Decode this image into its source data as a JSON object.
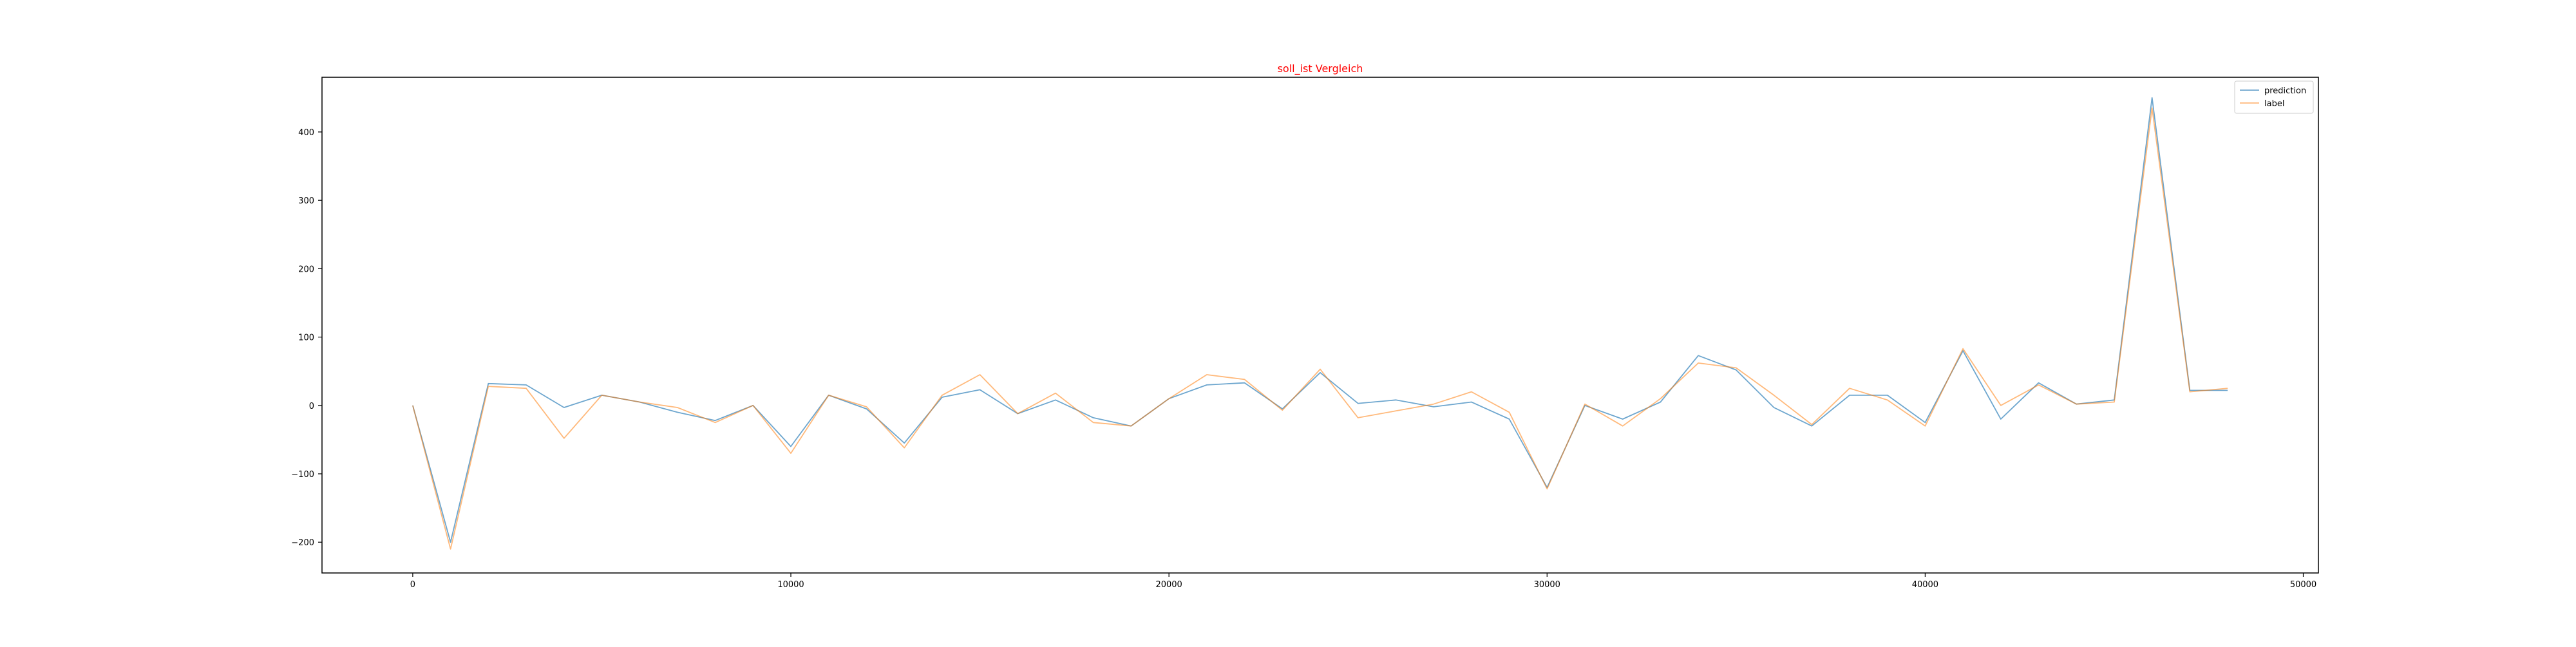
{
  "chart_data": {
    "type": "line",
    "title": "soll_ist Vergleich",
    "title_color": "#ff0000",
    "xlabel": "",
    "ylabel": "",
    "xlim": [
      -2400,
      50400
    ],
    "ylim": [
      -245,
      480
    ],
    "x_ticks": [
      0,
      10000,
      20000,
      30000,
      40000,
      50000
    ],
    "y_ticks": [
      -200,
      -100,
      0,
      100,
      200,
      300,
      400
    ],
    "grid": false,
    "legend_position": "top-right",
    "x": [
      0,
      1000,
      2000,
      3000,
      4000,
      5000,
      6000,
      7000,
      8000,
      9000,
      10000,
      11000,
      12000,
      13000,
      14000,
      15000,
      16000,
      17000,
      18000,
      19000,
      20000,
      21000,
      22000,
      23000,
      24000,
      25000,
      26000,
      27000,
      28000,
      29000,
      30000,
      31000,
      32000,
      33000,
      34000,
      35000,
      36000,
      37000,
      38000,
      39000,
      40000,
      41000,
      42000,
      43000,
      44000,
      45000,
      46000,
      47000,
      48000
    ],
    "series": [
      {
        "name": "prediction",
        "color": "#1f77b4",
        "values": [
          0,
          -200,
          32,
          30,
          -3,
          15,
          5,
          -10,
          -22,
          0,
          -60,
          15,
          -5,
          -55,
          12,
          23,
          -12,
          8,
          -18,
          -30,
          10,
          30,
          33,
          -5,
          48,
          3,
          8,
          -2,
          5,
          -20,
          -120,
          0,
          -20,
          5,
          73,
          52,
          -3,
          -30,
          15,
          15,
          -25,
          80,
          -20,
          33,
          2,
          8,
          450,
          22,
          22
        ],
        "opacity": 0.65
      },
      {
        "name": "label",
        "color": "#ff7f0e",
        "values": [
          0,
          -210,
          28,
          25,
          -48,
          15,
          5,
          -3,
          -25,
          0,
          -70,
          15,
          -2,
          -62,
          15,
          45,
          -12,
          18,
          -25,
          -30,
          10,
          45,
          38,
          -7,
          53,
          -18,
          -8,
          2,
          20,
          -10,
          -122,
          2,
          -30,
          10,
          62,
          55,
          15,
          -28,
          25,
          8,
          -30,
          83,
          0,
          30,
          2,
          5,
          435,
          20,
          25
        ],
        "opacity": 0.55
      }
    ]
  }
}
